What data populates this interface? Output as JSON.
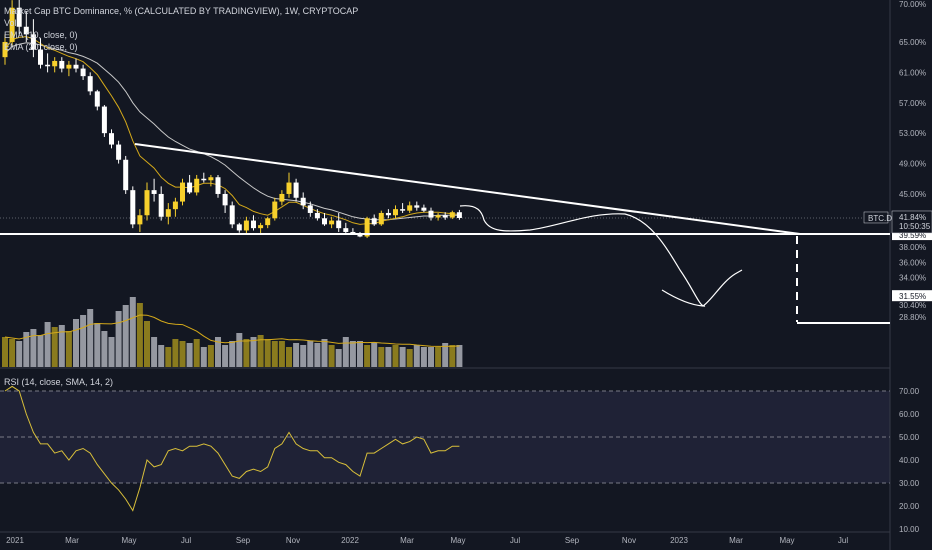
{
  "header": {
    "title": "Market Cap BTC Dominance, % (CALCULATED BY TRADINGVIEW), 1W, CRYPTOCAP",
    "volume_label": "Vol",
    "ema1_label": "EMA (10, close, 0)",
    "ema2_label": "EMA (20, close, 0)",
    "rsi_label": "RSI (14, close, SMA, 14, 2)"
  },
  "colors": {
    "background": "#131722",
    "bull": "#f7d02c",
    "bear": "#ffffff",
    "vol_bull": "#8a7b1e",
    "vol_bear": "#9598a1",
    "ema_fast": "#d4a91a",
    "ema_slow": "#c8c8c8",
    "rsi_line": "#d8bf3a",
    "rsi_band": "#1f2236",
    "drawing": "#ffffff",
    "axis_text": "#b2b5be",
    "grid": "#2a2e39"
  },
  "chart_data": {
    "type": "candlestick",
    "symbol": "BTC.D",
    "timeframe": "1W",
    "price_axis": {
      "ticks": [
        "70.00%",
        "65.00%",
        "61.00%",
        "57.00%",
        "53.00%",
        "49.00%",
        "45.00%",
        "41.84%",
        "39.59%",
        "38.00%",
        "36.00%",
        "34.00%",
        "31.55%",
        "30.40%",
        "28.80%"
      ],
      "plain_ticks": [
        70,
        65,
        61,
        57,
        53,
        49,
        45,
        38,
        36,
        34,
        30.4,
        28.8
      ],
      "last_price": "41.84%",
      "countdown": "10:50:35",
      "support_level": "39.59%",
      "target_level": "31.55%",
      "symbol_tag": "BTC.D"
    },
    "time_axis": [
      "2021",
      "Mar",
      "May",
      "Jul",
      "Sep",
      "Nov",
      "2022",
      "Mar",
      "May",
      "Jul",
      "Sep",
      "Nov",
      "2023",
      "Mar",
      "May",
      "Jul"
    ],
    "candles": [
      [
        63,
        66,
        62,
        65
      ],
      [
        65,
        70.5,
        64.5,
        69.5
      ],
      [
        69.5,
        71.2,
        66,
        67
      ],
      [
        67,
        69,
        65,
        66
      ],
      [
        66,
        68,
        63,
        64
      ],
      [
        64,
        65.5,
        61.5,
        62
      ],
      [
        62,
        63.5,
        61,
        61.8
      ],
      [
        61.8,
        63,
        61,
        62.5
      ],
      [
        62.5,
        63,
        61,
        61.5
      ],
      [
        61.5,
        62.5,
        60.5,
        62
      ],
      [
        62,
        62.8,
        61,
        61.5
      ],
      [
        61.5,
        62,
        60,
        60.5
      ],
      [
        60.5,
        61,
        58,
        58.5
      ],
      [
        58.5,
        58.7,
        56,
        56.5
      ],
      [
        56.5,
        56.7,
        52.5,
        53
      ],
      [
        53,
        53.5,
        51,
        51.5
      ],
      [
        51.5,
        52,
        49,
        49.5
      ],
      [
        49.5,
        50,
        45,
        45.5
      ],
      [
        45.5,
        46,
        40.5,
        41
      ],
      [
        41,
        43,
        40,
        42.2
      ],
      [
        42.2,
        46.5,
        41.5,
        45.5
      ],
      [
        45.5,
        47,
        44,
        45
      ],
      [
        45,
        46,
        41.5,
        42
      ],
      [
        42,
        43.8,
        41,
        43
      ],
      [
        43,
        44.5,
        42,
        44
      ],
      [
        44,
        47,
        43.5,
        46.5
      ],
      [
        46.5,
        47.5,
        45,
        45.2
      ],
      [
        45.2,
        47.5,
        44.8,
        47
      ],
      [
        47,
        47.8,
        46.5,
        46.8
      ],
      [
        46.8,
        47.5,
        46,
        47.2
      ],
      [
        47.2,
        47.5,
        44.5,
        45
      ],
      [
        45,
        45.5,
        42.5,
        43.5
      ],
      [
        43.5,
        44,
        40.5,
        41
      ],
      [
        41,
        41.2,
        39.9,
        40.2
      ],
      [
        40.2,
        42,
        39.8,
        41.5
      ],
      [
        41.5,
        42.2,
        40.2,
        40.5
      ],
      [
        40.5,
        41.2,
        39.8,
        40.9
      ],
      [
        40.9,
        42,
        40.5,
        41.8
      ],
      [
        41.8,
        44.5,
        41.5,
        44
      ],
      [
        44,
        45.5,
        43.5,
        45
      ],
      [
        45,
        47.8,
        44.5,
        46.5
      ],
      [
        46.5,
        47,
        44,
        44.5
      ],
      [
        44.5,
        45.2,
        43,
        43.5
      ],
      [
        43.5,
        44,
        42,
        42.5
      ],
      [
        42.5,
        43,
        41.5,
        41.8
      ],
      [
        41.8,
        42.5,
        40.8,
        41
      ],
      [
        41,
        42,
        40.5,
        41.5
      ],
      [
        41.5,
        42.5,
        40,
        40.5
      ],
      [
        40.5,
        41.2,
        39.8,
        40
      ],
      [
        40,
        40.5,
        39.6,
        39.7
      ],
      [
        39.7,
        40,
        39.3,
        39.4
      ],
      [
        39.4,
        42,
        39.2,
        41.8
      ],
      [
        41.8,
        42.3,
        40.8,
        41
      ],
      [
        41,
        42.8,
        40.8,
        42.5
      ],
      [
        42.5,
        43,
        41.8,
        42.2
      ],
      [
        42.2,
        43.5,
        41.8,
        43
      ],
      [
        43,
        43.8,
        42.5,
        42.8
      ],
      [
        42.8,
        44,
        42.5,
        43.5
      ],
      [
        43.5,
        44,
        42.8,
        43.2
      ],
      [
        43.2,
        43.6,
        42.6,
        42.8
      ],
      [
        42.8,
        43.2,
        41.5,
        41.9
      ],
      [
        41.9,
        42.5,
        41.5,
        42.2
      ],
      [
        42.2,
        42.6,
        41.6,
        41.9
      ],
      [
        41.9,
        42.8,
        41.7,
        42.6
      ],
      [
        42.6,
        42.9,
        41.6,
        41.84
      ]
    ],
    "volume": [
      30,
      28,
      26,
      35,
      38,
      32,
      45,
      40,
      42,
      36,
      48,
      52,
      58,
      44,
      36,
      30,
      56,
      62,
      70,
      64,
      46,
      30,
      22,
      20,
      28,
      26,
      24,
      28,
      20,
      22,
      30,
      22,
      26,
      34,
      28,
      30,
      32,
      28,
      26,
      26,
      20,
      24,
      22,
      26,
      24,
      28,
      22,
      18,
      30,
      26,
      26,
      22,
      24,
      20,
      20,
      22,
      20,
      18,
      22,
      20,
      20,
      20,
      24,
      22,
      22
    ],
    "ema10": [
      64.0,
      65.3,
      65.6,
      65.7,
      65.4,
      64.8,
      64.2,
      63.9,
      63.5,
      63.1,
      62.8,
      62.4,
      61.6,
      60.7,
      59.3,
      57.9,
      56.4,
      54.5,
      52.0,
      50.0,
      49.2,
      48.4,
      47.2,
      46.4,
      45.9,
      45.9,
      45.8,
      46.1,
      46.4,
      46.4,
      46.2,
      45.7,
      44.8,
      43.6,
      43.2,
      42.7,
      42.4,
      42.2,
      42.7,
      43.3,
      43.9,
      43.9,
      43.5,
      43.1,
      42.7,
      42.4,
      42.2,
      41.9,
      41.6,
      41.2,
      41.0,
      41.1,
      41.1,
      41.4,
      41.6,
      41.8,
      42.0,
      42.3,
      42.5,
      42.6,
      42.6,
      42.6,
      42.5,
      42.4,
      42.3
    ],
    "ema20": [
      63.5,
      64.4,
      64.7,
      64.9,
      64.8,
      64.6,
      64.3,
      64.1,
      63.9,
      63.6,
      63.4,
      63.1,
      62.7,
      62.2,
      61.4,
      60.6,
      59.7,
      58.5,
      57.0,
      55.8,
      55.0,
      54.2,
      53.3,
      52.5,
      51.9,
      51.4,
      50.9,
      50.6,
      50.3,
      49.9,
      49.4,
      48.8,
      48.0,
      47.2,
      46.5,
      45.8,
      45.2,
      44.7,
      44.4,
      44.3,
      44.2,
      44.1,
      43.9,
      43.7,
      43.4,
      43.1,
      42.9,
      42.6,
      42.3,
      42.0,
      41.8,
      41.7,
      41.6,
      41.6,
      41.6,
      41.7,
      41.8,
      41.9,
      42.0,
      42.1,
      42.1,
      42.2,
      42.2,
      42.2,
      42.2
    ],
    "rsi": [
      70,
      72,
      70,
      60,
      52,
      47,
      47,
      43,
      44,
      40,
      44,
      45,
      43,
      38,
      34,
      30,
      27,
      23,
      18,
      28,
      40,
      37,
      38,
      44,
      45,
      44,
      46,
      46,
      47,
      46,
      43,
      38,
      33,
      32,
      35,
      36,
      35,
      37,
      45,
      47,
      52,
      47,
      45,
      44,
      44,
      41,
      41,
      39,
      38,
      35,
      33,
      43,
      43,
      45,
      47,
      49,
      47,
      48,
      50,
      49,
      43,
      44,
      44,
      46,
      46
    ],
    "rsi_axis": [
      "70.00",
      "60.00",
      "50.00",
      "40.00",
      "30.00",
      "20.00",
      "10.00"
    ],
    "rsi_levels": {
      "upper": 70,
      "middle": 50,
      "lower": 30
    }
  }
}
